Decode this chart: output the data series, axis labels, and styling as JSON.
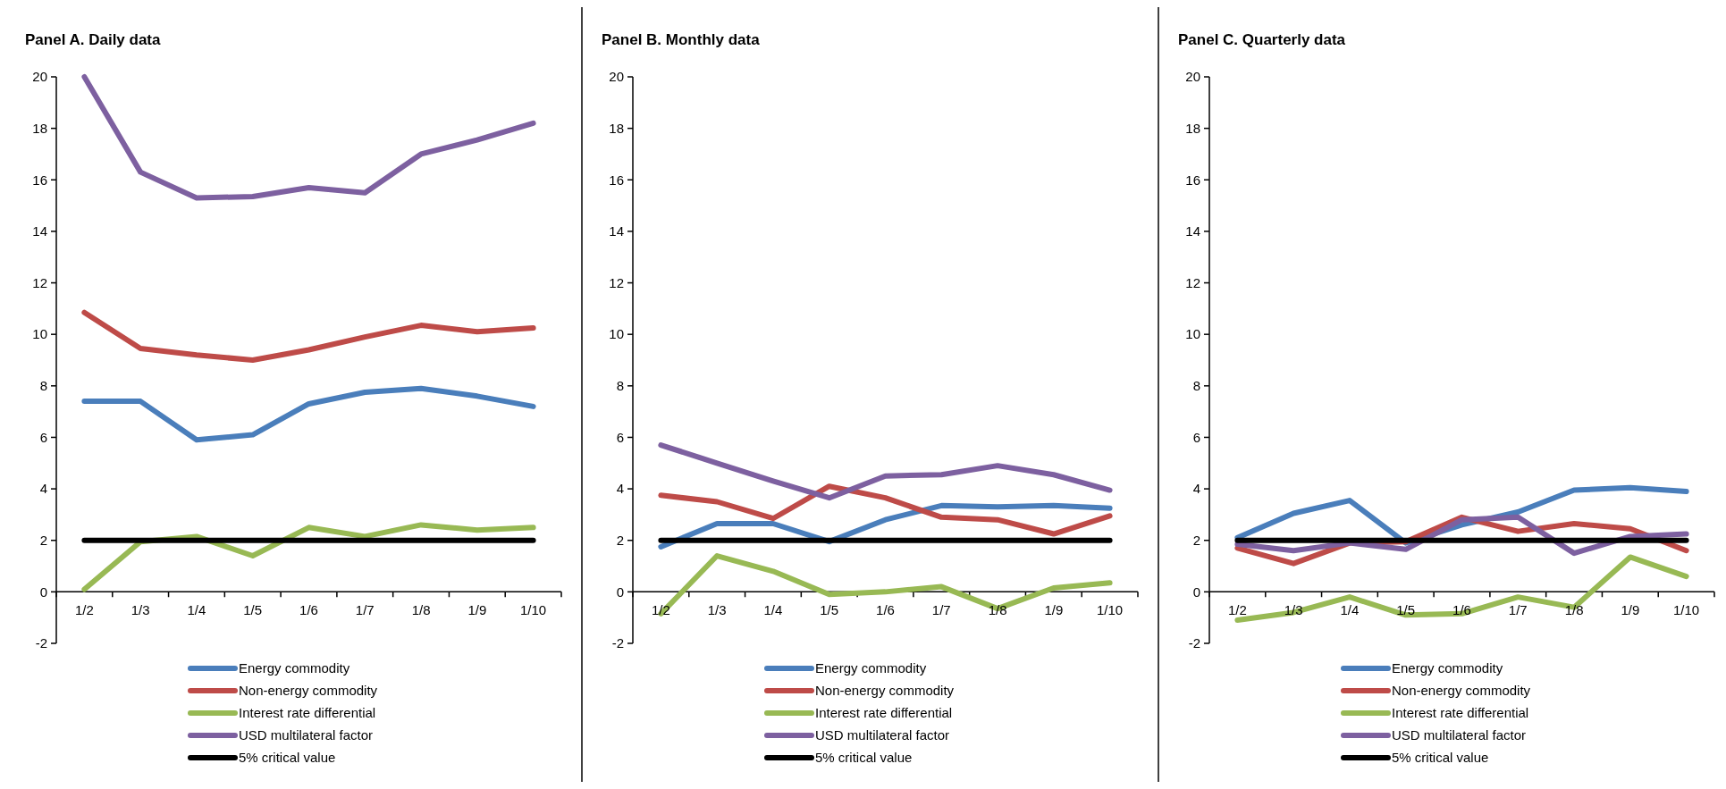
{
  "chart_data": [
    {
      "type": "line",
      "title": "Panel A. Daily data",
      "categories": [
        "1/2",
        "1/3",
        "1/4",
        "1/5",
        "1/6",
        "1/7",
        "1/8",
        "1/9",
        "1/10"
      ],
      "ylim": [
        -2,
        20
      ],
      "yticks": [
        -2,
        0,
        2,
        4,
        6,
        8,
        10,
        12,
        14,
        16,
        18,
        20
      ],
      "grid": false,
      "legend": "bottom",
      "marker": "none",
      "line_style": "solid",
      "series": [
        {
          "name": "Energy commodity",
          "color": "#4a7ebb",
          "values": [
            7.4,
            7.4,
            5.9,
            6.1,
            7.3,
            7.75,
            7.9,
            7.6,
            7.2
          ]
        },
        {
          "name": "Non-energy commodity",
          "color": "#be4b48",
          "values": [
            10.85,
            9.45,
            9.2,
            9.0,
            9.4,
            9.9,
            10.35,
            10.1,
            10.25
          ]
        },
        {
          "name": "Interest rate differential",
          "color": "#98b954",
          "values": [
            0.1,
            1.95,
            2.15,
            1.4,
            2.5,
            2.15,
            2.6,
            2.4,
            2.5
          ]
        },
        {
          "name": "USD multilateral factor",
          "color": "#7d60a0",
          "values": [
            20,
            16.3,
            15.3,
            15.35,
            15.7,
            15.5,
            17.0,
            17.55,
            18.2
          ]
        },
        {
          "name": "5% critical value",
          "color": "#000000",
          "values": [
            2,
            2,
            2,
            2,
            2,
            2,
            2,
            2,
            2
          ]
        }
      ]
    },
    {
      "type": "line",
      "title": "Panel B. Monthly data",
      "categories": [
        "1/2",
        "1/3",
        "1/4",
        "1/5",
        "1/6",
        "1/7",
        "1/8",
        "1/9",
        "1/10"
      ],
      "ylim": [
        -2,
        20
      ],
      "yticks": [
        -2,
        0,
        2,
        4,
        6,
        8,
        10,
        12,
        14,
        16,
        18,
        20
      ],
      "grid": false,
      "legend": "bottom",
      "marker": "none",
      "line_style": "solid",
      "series": [
        {
          "name": "Energy commodity",
          "color": "#4a7ebb",
          "values": [
            1.75,
            2.65,
            2.65,
            1.95,
            2.8,
            3.35,
            3.3,
            3.35,
            3.25
          ]
        },
        {
          "name": "Non-energy commodity",
          "color": "#be4b48",
          "values": [
            3.75,
            3.5,
            2.85,
            4.1,
            3.65,
            2.9,
            2.8,
            2.25,
            2.95
          ]
        },
        {
          "name": "Interest rate differential",
          "color": "#98b954",
          "values": [
            -0.85,
            1.4,
            0.8,
            -0.1,
            0.0,
            0.2,
            -0.65,
            0.15,
            0.35
          ]
        },
        {
          "name": "USD multilateral factor",
          "color": "#7d60a0",
          "values": [
            5.7,
            5.0,
            4.3,
            3.65,
            4.5,
            4.55,
            4.9,
            4.55,
            3.95
          ]
        },
        {
          "name": "5% critical value",
          "color": "#000000",
          "values": [
            2,
            2,
            2,
            2,
            2,
            2,
            2,
            2,
            2
          ]
        }
      ]
    },
    {
      "type": "line",
      "title": "Panel C. Quarterly data",
      "categories": [
        "1/2",
        "1/3",
        "1/4",
        "1/5",
        "1/6",
        "1/7",
        "1/8",
        "1/9",
        "1/10"
      ],
      "ylim": [
        -2,
        20
      ],
      "yticks": [
        -2,
        0,
        2,
        4,
        6,
        8,
        10,
        12,
        14,
        16,
        18,
        20
      ],
      "grid": false,
      "legend": "bottom",
      "marker": "none",
      "line_style": "solid",
      "series": [
        {
          "name": "Energy commodity",
          "color": "#4a7ebb",
          "values": [
            2.1,
            3.05,
            3.55,
            1.9,
            2.6,
            3.1,
            3.95,
            4.05,
            3.9
          ]
        },
        {
          "name": "Non-energy commodity",
          "color": "#be4b48",
          "values": [
            1.7,
            1.1,
            1.9,
            1.95,
            2.9,
            2.35,
            2.65,
            2.45,
            1.6
          ]
        },
        {
          "name": "Interest rate differential",
          "color": "#98b954",
          "values": [
            -1.1,
            -0.8,
            -0.2,
            -0.9,
            -0.85,
            -0.2,
            -0.6,
            1.35,
            0.6
          ]
        },
        {
          "name": "USD multilateral factor",
          "color": "#7d60a0",
          "values": [
            1.85,
            1.6,
            1.9,
            1.65,
            2.8,
            2.9,
            1.5,
            2.15,
            2.25
          ]
        },
        {
          "name": "5% critical value",
          "color": "#000000",
          "values": [
            2,
            2,
            2,
            2,
            2,
            2,
            2,
            2,
            2
          ]
        }
      ]
    }
  ]
}
